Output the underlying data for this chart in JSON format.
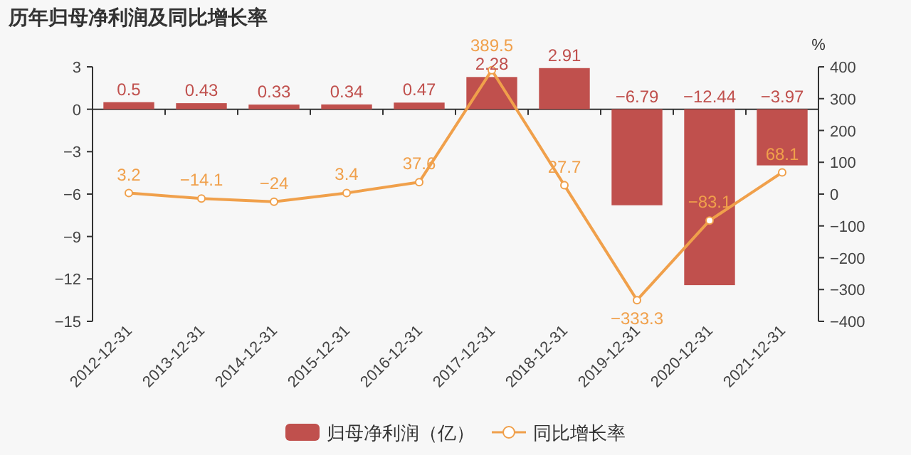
{
  "chart_data": {
    "type": "bar",
    "title": "历年归母净利润及同比增长率",
    "y2label": "%",
    "categories": [
      "2012-12-31",
      "2013-12-31",
      "2014-12-31",
      "2015-12-31",
      "2016-12-31",
      "2017-12-31",
      "2018-12-31",
      "2019-12-31",
      "2020-12-31",
      "2021-12-31"
    ],
    "series": [
      {
        "name": "归母净利润（亿）",
        "color": "#c0504d",
        "values": [
          0.5,
          0.43,
          0.33,
          0.34,
          0.47,
          2.28,
          2.91,
          -6.79,
          -12.44,
          -3.97
        ],
        "value_labels": [
          "0.5",
          "0.43",
          "0.33",
          "0.34",
          "0.47",
          "2.28",
          "2.91",
          "−6.79",
          "−12.44",
          "−3.97"
        ]
      },
      {
        "name": "同比增长率",
        "type": "line",
        "axis": "y2",
        "color": "#f0a04b",
        "marker": "circle",
        "values": [
          3.2,
          -14.1,
          -24,
          3.4,
          37.6,
          389.5,
          27.7,
          -333.3,
          -83.1,
          68.1
        ],
        "value_labels": [
          "3.2",
          "−14.1",
          "−24",
          "3.4",
          "37.6",
          "389.5",
          "27.7",
          "−333.3",
          "−83.1",
          "68.1"
        ]
      }
    ],
    "ylim": [
      -15,
      3
    ],
    "yticks": [
      {
        "value": -15,
        "label": "−15"
      },
      {
        "value": -12,
        "label": "−12"
      },
      {
        "value": -9,
        "label": "−9"
      },
      {
        "value": -6,
        "label": "−6"
      },
      {
        "value": -3,
        "label": "−3"
      },
      0,
      3
    ],
    "y2lim": [
      -400,
      400
    ],
    "y2ticks": [
      {
        "value": -400,
        "label": "−400"
      },
      {
        "value": -300,
        "label": "−300"
      },
      {
        "value": -200,
        "label": "−200"
      },
      {
        "value": -100,
        "label": "−100"
      },
      0,
      100,
      200,
      300,
      400
    ],
    "legend": "bottom"
  }
}
